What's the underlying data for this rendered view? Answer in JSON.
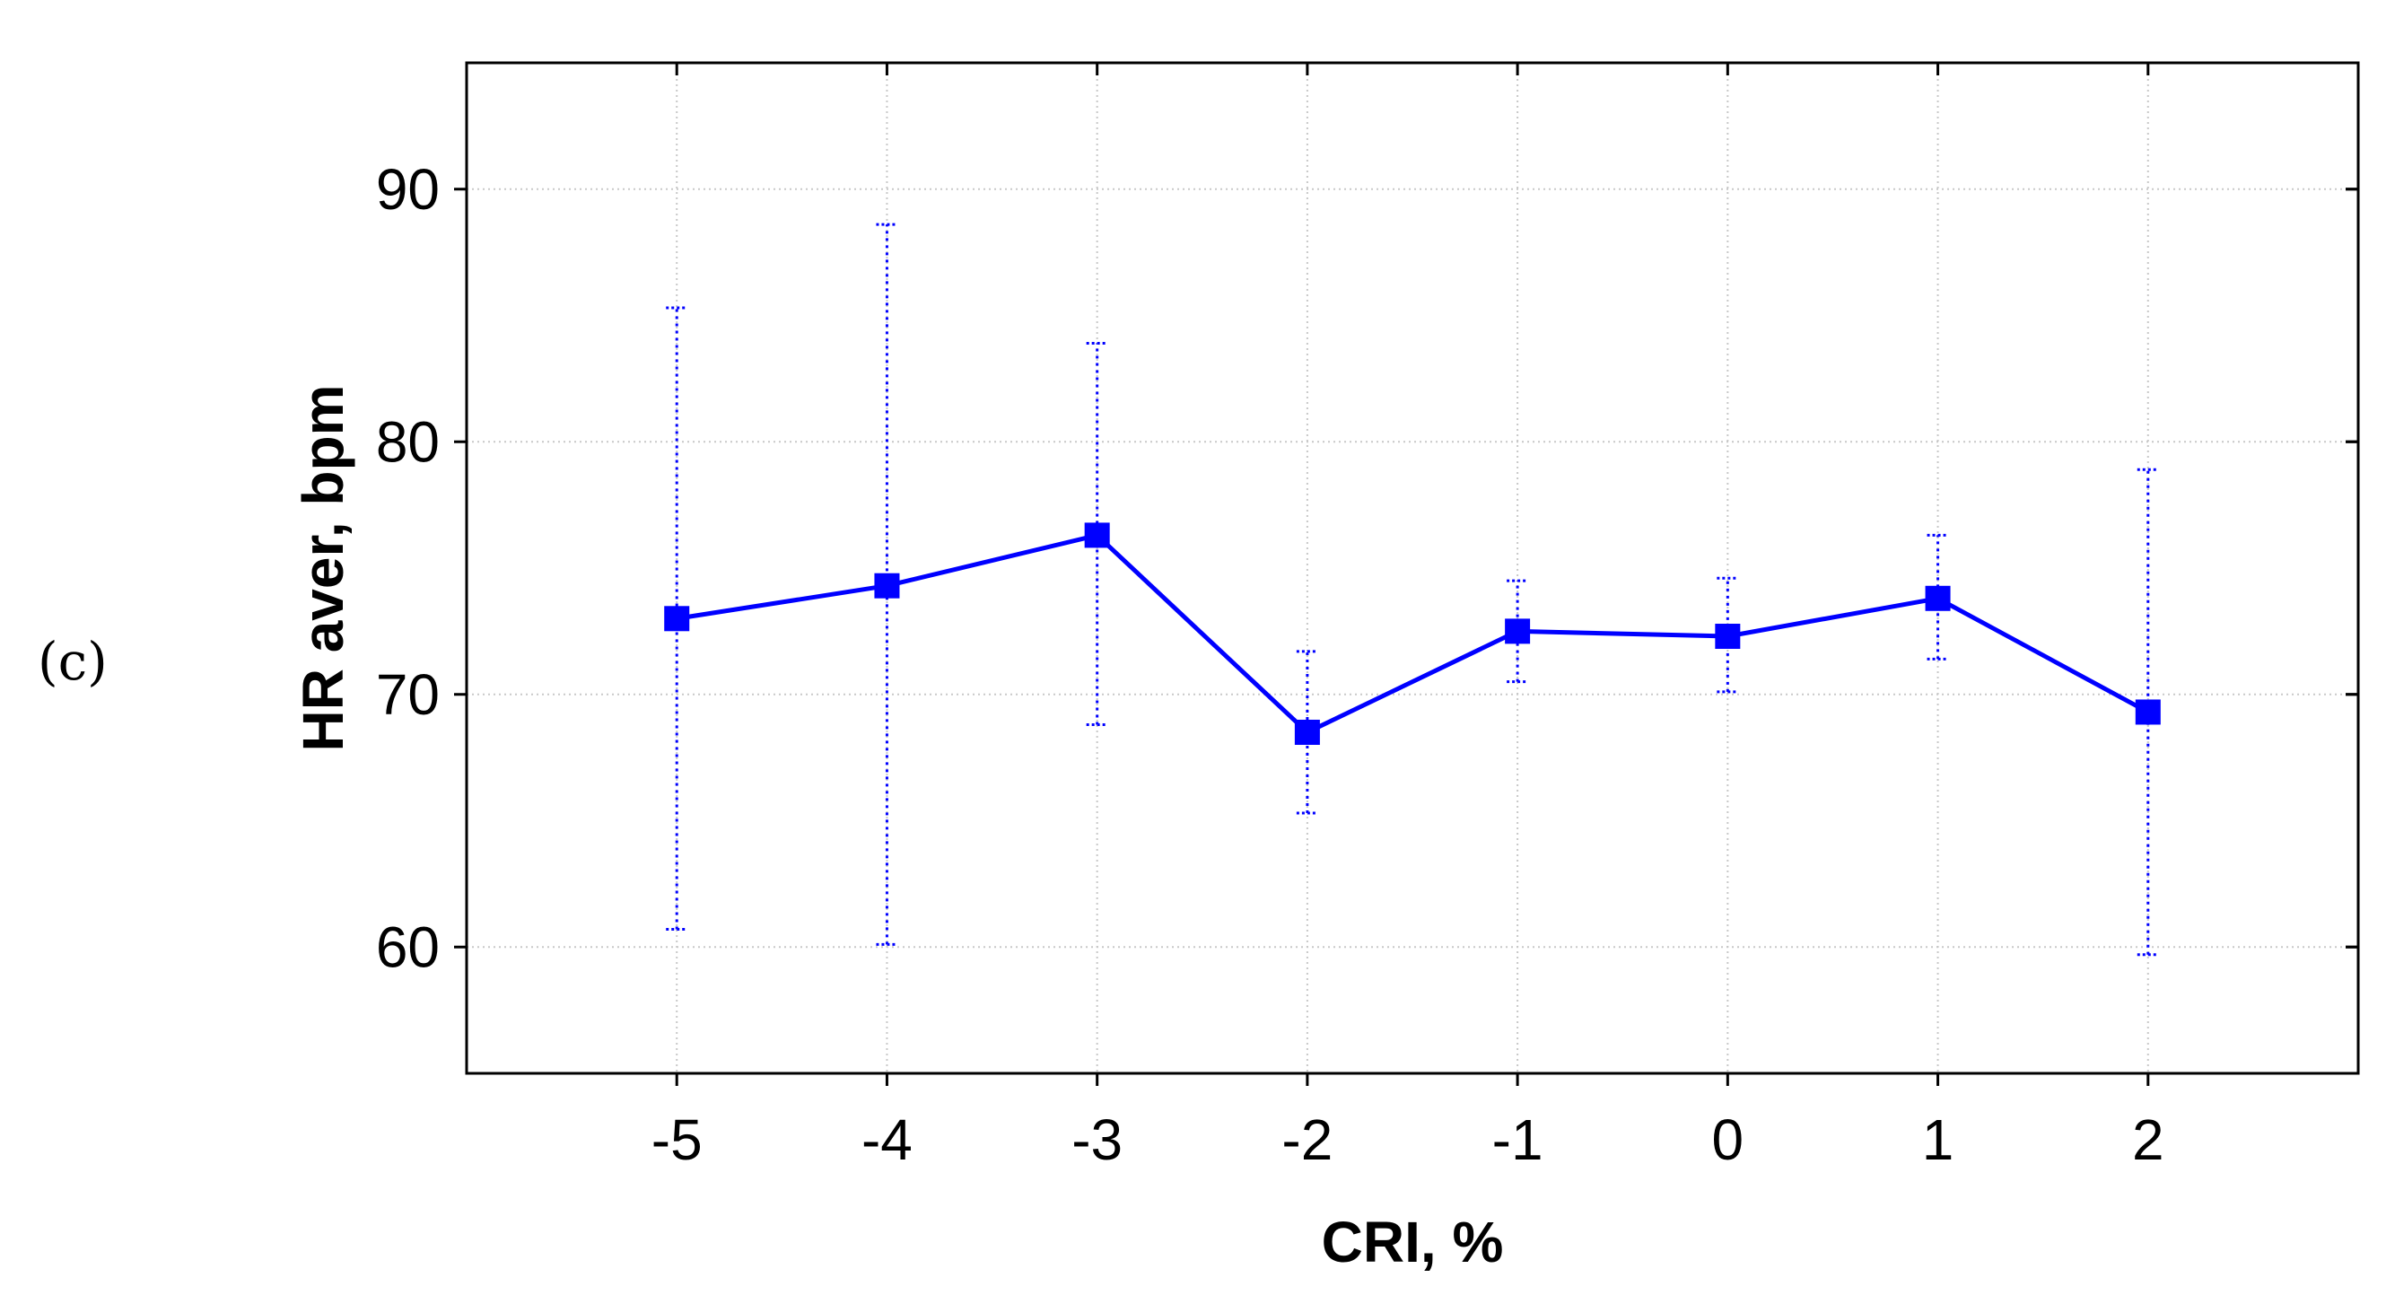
{
  "panel_label": "(c)",
  "chart_data": {
    "type": "line",
    "title": "",
    "xlabel": "CRI, %",
    "ylabel": "HR aver, bpm",
    "x": [
      -5,
      -4,
      -3,
      -2,
      -1,
      0,
      1,
      2
    ],
    "x_ticks": [
      -5,
      -4,
      -3,
      -2,
      -1,
      0,
      1,
      2
    ],
    "xlim": [
      -6,
      3
    ],
    "y_ticks": [
      60,
      70,
      80,
      90
    ],
    "ylim": [
      55,
      95
    ],
    "grid": true,
    "series": [
      {
        "values": [
          73.0,
          74.3,
          76.3,
          68.5,
          72.5,
          72.3,
          73.8,
          69.3
        ],
        "error_low": [
          60.7,
          60.1,
          68.8,
          65.3,
          70.5,
          70.1,
          71.4,
          59.7
        ],
        "error_high": [
          85.3,
          88.6,
          83.9,
          71.7,
          74.5,
          74.6,
          76.3,
          78.9
        ],
        "color": "#0000ff",
        "marker": "square"
      }
    ]
  }
}
